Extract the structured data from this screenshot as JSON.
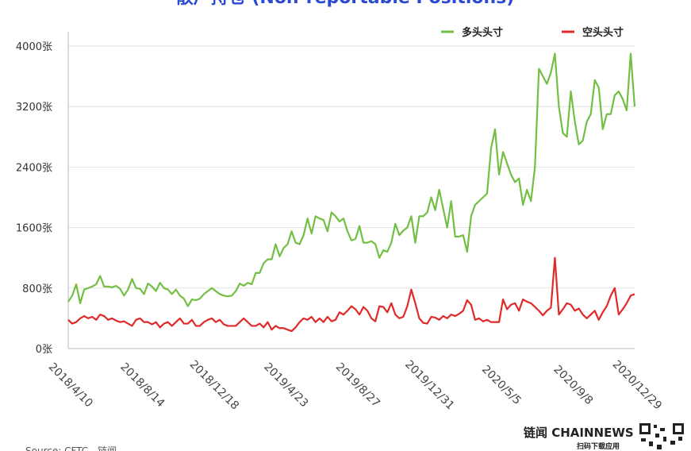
{
  "chart_data": {
    "type": "line",
    "title": "散户持仓 (Non-reportable Positions)",
    "source": "Source: CFTC，链闻",
    "annotations": [
      "链闻 CHAINNEWS",
      "扫码下载应用"
    ],
    "categories": [
      "2018/4/10",
      null,
      null,
      null,
      null,
      null,
      null,
      null,
      null,
      null,
      null,
      null,
      null,
      null,
      null,
      null,
      null,
      null,
      "2018/8/14",
      null,
      null,
      null,
      null,
      null,
      null,
      null,
      null,
      null,
      null,
      null,
      null,
      null,
      null,
      null,
      null,
      null,
      "2018/12/18",
      null,
      null,
      null,
      null,
      null,
      null,
      null,
      null,
      null,
      null,
      null,
      null,
      null,
      null,
      null,
      null,
      null,
      "2019/4/23",
      null,
      null,
      null,
      null,
      null,
      null,
      null,
      null,
      null,
      null,
      null,
      null,
      null,
      null,
      null,
      null,
      null,
      "2019/8/27",
      null,
      null,
      null,
      null,
      null,
      null,
      null,
      null,
      null,
      null,
      null,
      null,
      null,
      null,
      null,
      null,
      null,
      "2019/12/31",
      null,
      null,
      null,
      null,
      null,
      null,
      null,
      null,
      null,
      null,
      null,
      null,
      null,
      null,
      null,
      null,
      null,
      "2020/5/5",
      null,
      null,
      null,
      null,
      null,
      null,
      null,
      null,
      null,
      null,
      null,
      null,
      null,
      null,
      null,
      null,
      null,
      "2020/9/8",
      null,
      null,
      null,
      null,
      null,
      null,
      null,
      null,
      null,
      null,
      null,
      null,
      null,
      null,
      null,
      "2020/12/29"
    ],
    "series": [
      {
        "name": "多头头寸",
        "color": "#72bf44",
        "values": [
          620,
          700,
          850,
          600,
          780,
          800,
          820,
          850,
          960,
          820,
          820,
          810,
          830,
          790,
          700,
          780,
          920,
          800,
          790,
          720,
          860,
          820,
          760,
          870,
          800,
          780,
          720,
          780,
          700,
          660,
          560,
          650,
          640,
          660,
          720,
          760,
          800,
          760,
          720,
          700,
          690,
          700,
          760,
          860,
          830,
          870,
          850,
          1000,
          1000,
          1130,
          1180,
          1180,
          1380,
          1220,
          1330,
          1380,
          1550,
          1400,
          1380,
          1500,
          1720,
          1520,
          1750,
          1720,
          1700,
          1550,
          1800,
          1750,
          1680,
          1720,
          1550,
          1430,
          1450,
          1620,
          1400,
          1400,
          1420,
          1380,
          1200,
          1300,
          1280,
          1400,
          1650,
          1500,
          1560,
          1600,
          1750,
          1400,
          1750,
          1750,
          1800,
          2000,
          1830,
          2100,
          1850,
          1600,
          1950,
          1480,
          1480,
          1500,
          1280,
          1750,
          1900,
          1950,
          2000,
          2050,
          2650,
          2900,
          2300,
          2600,
          2450,
          2300,
          2200,
          2250,
          1900,
          2100,
          1950,
          2400,
          3700,
          3600,
          3500,
          3650,
          3900,
          3200,
          2850,
          2800,
          3400,
          3000,
          2700,
          2750,
          3000,
          3100,
          3550,
          3450,
          2900,
          3100,
          3100,
          3350,
          3400,
          3300,
          3150,
          3900,
          3200
        ]
      },
      {
        "name": "空头头寸",
        "color": "#e02a2a",
        "values": [
          380,
          330,
          350,
          400,
          430,
          400,
          420,
          380,
          450,
          430,
          380,
          400,
          370,
          350,
          360,
          330,
          300,
          380,
          400,
          350,
          350,
          320,
          350,
          280,
          330,
          350,
          300,
          350,
          400,
          330,
          330,
          380,
          300,
          300,
          350,
          380,
          400,
          350,
          380,
          320,
          300,
          300,
          300,
          350,
          400,
          350,
          300,
          300,
          330,
          280,
          350,
          250,
          300,
          270,
          270,
          250,
          230,
          280,
          350,
          400,
          380,
          420,
          350,
          400,
          350,
          420,
          360,
          380,
          480,
          450,
          500,
          560,
          520,
          450,
          550,
          500,
          400,
          360,
          560,
          550,
          480,
          600,
          450,
          400,
          420,
          560,
          780,
          600,
          400,
          340,
          330,
          420,
          410,
          380,
          430,
          400,
          450,
          430,
          460,
          500,
          640,
          580,
          380,
          400,
          360,
          380,
          350,
          350,
          350,
          650,
          520,
          580,
          600,
          500,
          650,
          620,
          600,
          550,
          500,
          440,
          500,
          540,
          1200,
          450,
          520,
          600,
          580,
          500,
          530,
          450,
          400,
          450,
          500,
          380,
          480,
          560,
          700,
          800,
          450,
          520,
          600,
          700,
          720
        ]
      }
    ],
    "ylim": [
      0,
      4000
    ],
    "yticks": [
      {
        "value": 0,
        "label": "0张"
      },
      {
        "value": 800,
        "label": "800张"
      },
      {
        "value": 1600,
        "label": "1600张"
      },
      {
        "value": 2400,
        "label": "2400张"
      },
      {
        "value": 3200,
        "label": "3200张"
      },
      {
        "value": 4000,
        "label": "4000张"
      }
    ],
    "grid": true,
    "legend": "top-right"
  }
}
